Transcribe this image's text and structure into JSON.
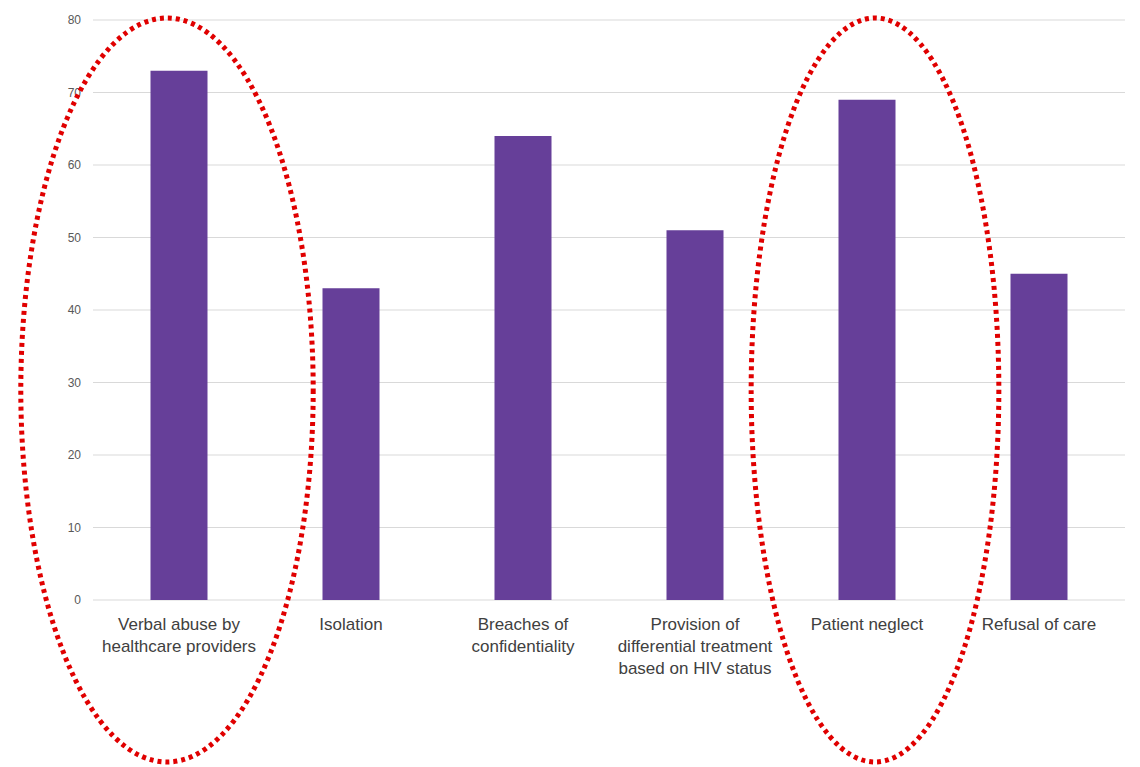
{
  "chart_data": {
    "type": "bar",
    "categories": [
      "Verbal abuse by healthcare providers",
      "Isolation",
      "Breaches of confidentiality",
      "Provision of differential treatment based on HIV status",
      "Patient neglect",
      "Refusal of care"
    ],
    "values": [
      73,
      43,
      64,
      51,
      69,
      45
    ],
    "color": "#663f99",
    "ylim": [
      0,
      80
    ],
    "yticks": [
      0,
      10,
      20,
      30,
      40,
      50,
      60,
      70,
      80
    ],
    "grid": true
  }
}
